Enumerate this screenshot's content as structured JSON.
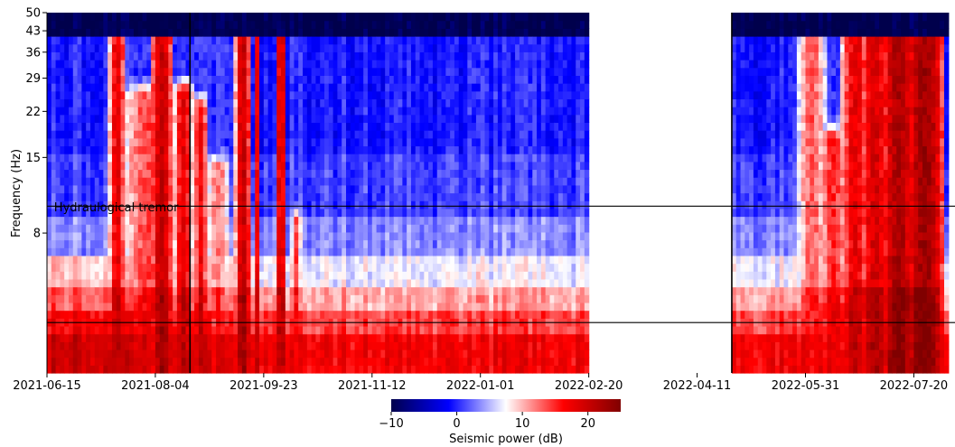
{
  "chart_data": {
    "type": "heatmap",
    "title": "",
    "ylabel": "Frequency (Hz)",
    "x_tick_labels": [
      "2021-06-15",
      "2021-08-04",
      "2021-09-23",
      "2021-11-12",
      "2022-01-01",
      "2022-02-20",
      "2022-04-11",
      "2022-05-31",
      "2022-07-20"
    ],
    "xlim": [
      "2021-06-15",
      "2022-08-08"
    ],
    "y_ticks": [
      8,
      15,
      22,
      29,
      36,
      43,
      50
    ],
    "y_tick_labels": [
      "8",
      "15",
      "22",
      "29",
      "36",
      "43",
      "50"
    ],
    "y_scale": "log",
    "ylim": [
      2.5,
      50
    ],
    "data_gap": [
      "2022-02-20",
      "2022-04-27"
    ],
    "hlines_hz": [
      10.0,
      3.8
    ],
    "vlines": [
      "2021-08-20",
      "2022-04-27"
    ],
    "annotation": {
      "text": "Hydraulogical tremor",
      "x": "2021-06-17",
      "y_hz": 9.3
    },
    "colorbar": {
      "label": "Seismic power (dB)",
      "ticks": [
        -10,
        0,
        10,
        20
      ],
      "tick_labels": [
        "−10",
        "0",
        "10",
        "20"
      ],
      "range": [
        -10,
        25
      ],
      "colormap": "seismic",
      "colors": [
        "#00004c",
        "#0000ff",
        "#ffffff",
        "#ff0000",
        "#800000"
      ]
    },
    "events": [
      {
        "start": "2021-07-13",
        "end": "2021-07-20",
        "peak_db": 18,
        "max_hz": 44
      },
      {
        "start": "2021-07-20",
        "end": "2021-08-12",
        "peak_db": 14,
        "max_hz": 25
      },
      {
        "start": "2021-08-01",
        "end": "2021-08-11",
        "peak_db": 20,
        "max_hz": 44
      },
      {
        "start": "2021-08-12",
        "end": "2021-08-20",
        "peak_db": 18,
        "max_hz": 26
      },
      {
        "start": "2021-08-21",
        "end": "2021-08-27",
        "peak_db": 17,
        "max_hz": 23
      },
      {
        "start": "2021-08-27",
        "end": "2021-09-06",
        "peak_db": 12,
        "max_hz": 14
      },
      {
        "start": "2021-09-09",
        "end": "2021-09-16",
        "peak_db": 20,
        "max_hz": 44
      },
      {
        "start": "2021-09-18",
        "end": "2021-09-20",
        "peak_db": 17,
        "max_hz": 42
      },
      {
        "start": "2021-09-28",
        "end": "2021-10-02",
        "peak_db": 20,
        "max_hz": 44
      },
      {
        "start": "2021-10-05",
        "end": "2021-10-09",
        "peak_db": 14,
        "max_hz": 9
      },
      {
        "start": "2021-12-28",
        "end": "2022-01-03",
        "peak_db": 9,
        "max_hz": 6
      },
      {
        "start": "2022-01-23",
        "end": "2022-01-25",
        "peak_db": 14,
        "max_hz": 6.5
      },
      {
        "start": "2022-05-27",
        "end": "2022-06-08",
        "peak_db": 13,
        "max_hz": 44
      },
      {
        "start": "2022-06-06",
        "end": "2022-06-18",
        "peak_db": 15,
        "max_hz": 18
      },
      {
        "start": "2022-06-16",
        "end": "2022-06-28",
        "peak_db": 18,
        "max_hz": 44
      },
      {
        "start": "2022-06-24",
        "end": "2022-07-08",
        "peak_db": 19,
        "max_hz": 44
      },
      {
        "start": "2022-07-04",
        "end": "2022-07-20",
        "peak_db": 22,
        "max_hz": 44
      },
      {
        "start": "2022-07-15",
        "end": "2022-08-02",
        "peak_db": 23,
        "max_hz": 44
      }
    ]
  }
}
